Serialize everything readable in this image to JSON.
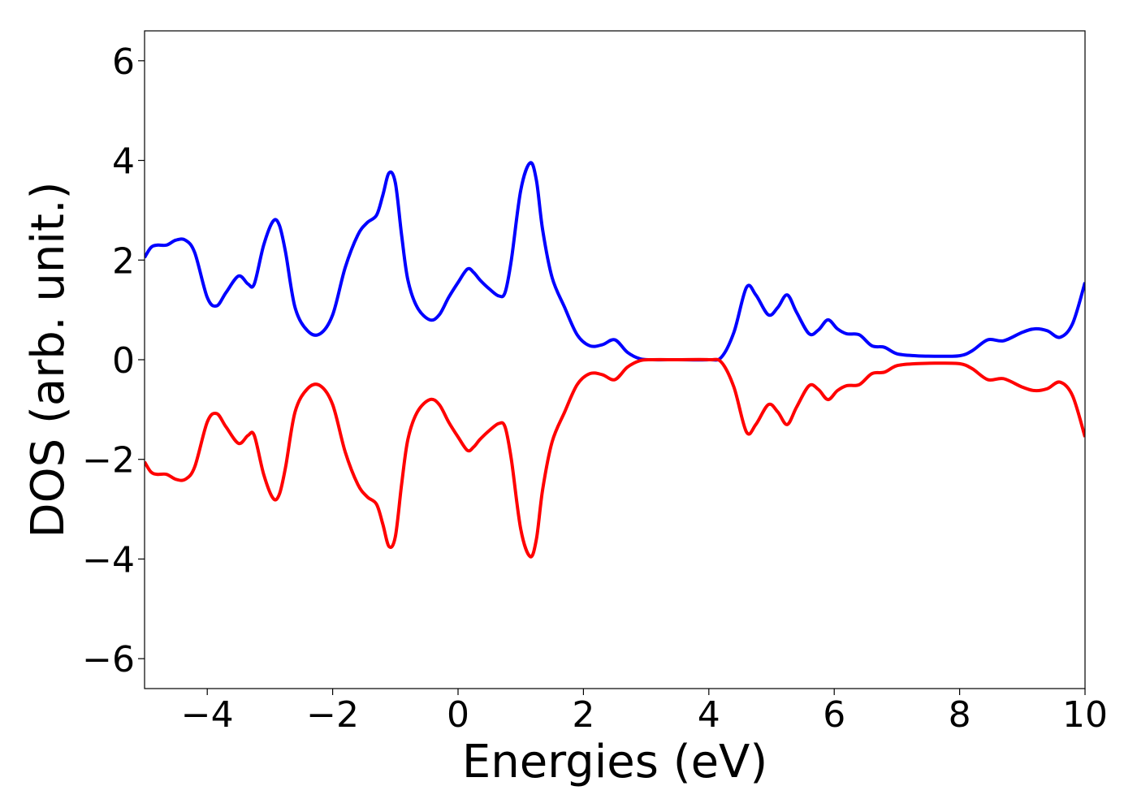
{
  "chart_data": {
    "type": "line",
    "title": "",
    "xlabel": "Energies (eV)",
    "ylabel": "DOS (arb. unit.)",
    "xlim": [
      -5,
      10
    ],
    "ylim": [
      -6.6,
      6.6
    ],
    "xticks": [
      -4,
      -2,
      0,
      2,
      4,
      6,
      8,
      10
    ],
    "xtick_labels": [
      "−4",
      "−2",
      "0",
      "2",
      "4",
      "6",
      "8",
      "10"
    ],
    "yticks": [
      -6,
      -4,
      -2,
      0,
      2,
      4,
      6
    ],
    "ytick_labels": [
      "−6",
      "−4",
      "−2",
      "0",
      "2",
      "4",
      "6"
    ],
    "grid": false,
    "legend": null,
    "series": [
      {
        "color": "#0000ff",
        "x": [
          -5.0,
          -4.9,
          -4.8,
          -4.65,
          -4.5,
          -4.35,
          -4.2,
          -4.0,
          -3.85,
          -3.7,
          -3.5,
          -3.35,
          -3.25,
          -3.1,
          -2.95,
          -2.85,
          -2.75,
          -2.6,
          -2.4,
          -2.2,
          -2.0,
          -1.8,
          -1.6,
          -1.45,
          -1.3,
          -1.2,
          -1.1,
          -1.0,
          -0.9,
          -0.8,
          -0.65,
          -0.45,
          -0.3,
          -0.15,
          0.0,
          0.15,
          0.25,
          0.35,
          0.5,
          0.65,
          0.75,
          0.85,
          1.0,
          1.15,
          1.25,
          1.35,
          1.5,
          1.7,
          1.9,
          2.1,
          2.3,
          2.5,
          2.7,
          2.9,
          3.1,
          3.5,
          4.0,
          4.2,
          4.4,
          4.6,
          4.75,
          4.95,
          5.1,
          5.25,
          5.4,
          5.6,
          5.75,
          5.9,
          6.05,
          6.2,
          6.4,
          6.6,
          6.8,
          7.0,
          7.3,
          7.6,
          8.0,
          8.2,
          8.45,
          8.7,
          9.0,
          9.2,
          9.4,
          9.6,
          9.8,
          10.0
        ],
        "y": [
          2.05,
          2.25,
          2.3,
          2.3,
          2.4,
          2.4,
          2.15,
          1.25,
          1.08,
          1.35,
          1.68,
          1.52,
          1.52,
          2.3,
          2.78,
          2.7,
          2.15,
          1.05,
          0.58,
          0.52,
          0.9,
          1.85,
          2.5,
          2.75,
          2.9,
          3.3,
          3.75,
          3.55,
          2.5,
          1.6,
          1.05,
          0.8,
          0.9,
          1.25,
          1.55,
          1.82,
          1.75,
          1.6,
          1.42,
          1.28,
          1.35,
          2.0,
          3.4,
          3.95,
          3.6,
          2.6,
          1.65,
          1.05,
          0.5,
          0.28,
          0.3,
          0.4,
          0.15,
          0.02,
          0.0,
          0.0,
          0.0,
          0.05,
          0.55,
          1.45,
          1.3,
          0.9,
          1.05,
          1.3,
          0.95,
          0.52,
          0.6,
          0.8,
          0.62,
          0.52,
          0.5,
          0.28,
          0.25,
          0.12,
          0.08,
          0.07,
          0.08,
          0.18,
          0.4,
          0.38,
          0.55,
          0.62,
          0.58,
          0.45,
          0.72,
          1.55
        ]
      },
      {
        "color": "#ff0000",
        "x": [
          -5.0,
          -4.9,
          -4.8,
          -4.65,
          -4.5,
          -4.35,
          -4.2,
          -4.0,
          -3.85,
          -3.7,
          -3.5,
          -3.35,
          -3.25,
          -3.1,
          -2.95,
          -2.85,
          -2.75,
          -2.6,
          -2.4,
          -2.2,
          -2.0,
          -1.8,
          -1.6,
          -1.45,
          -1.3,
          -1.2,
          -1.1,
          -1.0,
          -0.9,
          -0.8,
          -0.65,
          -0.45,
          -0.3,
          -0.15,
          0.0,
          0.15,
          0.25,
          0.35,
          0.5,
          0.65,
          0.75,
          0.85,
          1.0,
          1.15,
          1.25,
          1.35,
          1.5,
          1.7,
          1.9,
          2.1,
          2.3,
          2.5,
          2.7,
          2.9,
          3.1,
          3.5,
          4.0,
          4.2,
          4.4,
          4.6,
          4.75,
          4.95,
          5.1,
          5.25,
          5.4,
          5.6,
          5.75,
          5.9,
          6.05,
          6.2,
          6.4,
          6.6,
          6.8,
          7.0,
          7.3,
          7.6,
          8.0,
          8.2,
          8.45,
          8.7,
          9.0,
          9.2,
          9.4,
          9.6,
          9.8,
          10.0
        ],
        "y": [
          -2.05,
          -2.25,
          -2.3,
          -2.3,
          -2.4,
          -2.4,
          -2.15,
          -1.25,
          -1.08,
          -1.35,
          -1.68,
          -1.52,
          -1.52,
          -2.3,
          -2.78,
          -2.7,
          -2.15,
          -1.05,
          -0.58,
          -0.52,
          -0.9,
          -1.85,
          -2.5,
          -2.75,
          -2.9,
          -3.3,
          -3.75,
          -3.55,
          -2.5,
          -1.6,
          -1.05,
          -0.8,
          -0.9,
          -1.25,
          -1.55,
          -1.82,
          -1.75,
          -1.6,
          -1.42,
          -1.28,
          -1.35,
          -2.0,
          -3.4,
          -3.95,
          -3.6,
          -2.6,
          -1.65,
          -1.05,
          -0.5,
          -0.28,
          -0.3,
          -0.4,
          -0.15,
          -0.02,
          0.0,
          0.0,
          0.0,
          -0.05,
          -0.55,
          -1.45,
          -1.3,
          -0.9,
          -1.05,
          -1.3,
          -0.95,
          -0.52,
          -0.6,
          -0.8,
          -0.62,
          -0.52,
          -0.5,
          -0.28,
          -0.25,
          -0.12,
          -0.08,
          -0.07,
          -0.08,
          -0.18,
          -0.4,
          -0.38,
          -0.55,
          -0.62,
          -0.58,
          -0.45,
          -0.72,
          -1.55
        ]
      }
    ]
  }
}
